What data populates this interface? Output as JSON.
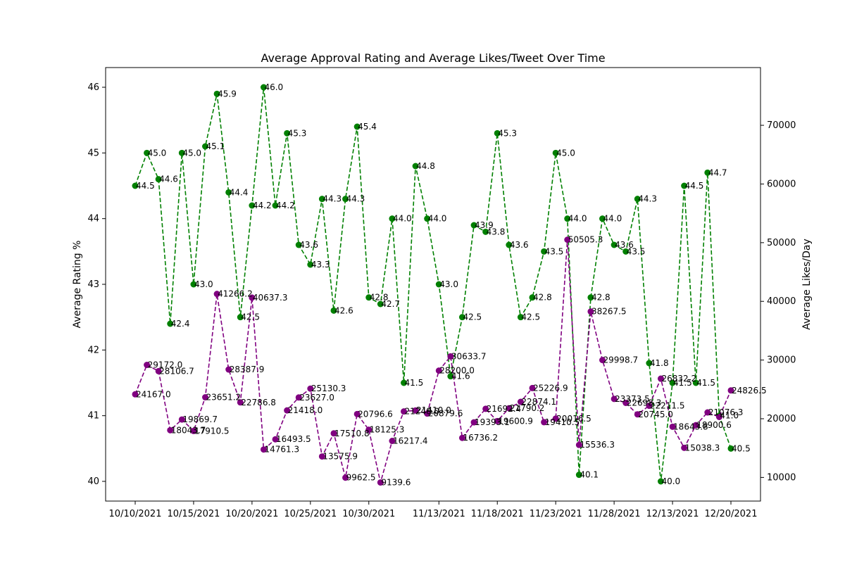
{
  "chart_data": {
    "type": "line",
    "title": "Average Approval Rating and Average Likes/Tweet Over Time",
    "ylabel": "Average Rating %",
    "y2label": "Average Likes/Day",
    "ylim": [
      39.7,
      46.3
    ],
    "y2lim": [
      5970,
      79840
    ],
    "yticks": [
      40,
      41,
      42,
      43,
      44,
      45,
      46
    ],
    "y2ticks": [
      10000,
      20000,
      30000,
      40000,
      50000,
      60000,
      70000
    ],
    "xticks": [
      "10/10/2021",
      "10/15/2021",
      "10/20/2021",
      "10/25/2021",
      "10/30/2021",
      "11/13/2021",
      "11/18/2021",
      "11/23/2021",
      "11/28/2021",
      "12/13/2021",
      "12/20/2021"
    ],
    "xtick_index": [
      0,
      5,
      10,
      15,
      20,
      26,
      31,
      36,
      41,
      46,
      51
    ],
    "grid": false,
    "colors": {
      "approval": "#008000",
      "likes": "#800080"
    },
    "series": [
      {
        "axis": "left",
        "color": "#008000",
        "values": [
          44.5,
          45.0,
          44.6,
          42.4,
          45.0,
          43.0,
          45.1,
          45.9,
          44.4,
          42.5,
          44.2,
          46.0,
          44.2,
          45.3,
          43.6,
          43.3,
          44.3,
          42.6,
          44.3,
          45.4,
          42.8,
          42.7,
          44.0,
          41.5,
          44.8,
          44.0,
          43.0,
          41.6,
          42.5,
          43.9,
          43.8,
          45.3,
          43.6,
          42.5,
          42.8,
          43.5,
          45.0,
          44.0,
          40.1,
          42.8,
          44.0,
          43.6,
          43.5,
          44.3,
          41.8,
          40.0,
          41.5,
          44.5,
          41.5,
          44.7,
          41.0,
          40.5
        ],
        "labels": [
          "44.5",
          "45.0",
          "44.6",
          "42.4",
          "45.0",
          "43.0",
          "45.1",
          "45.9",
          "44.4",
          "42.5",
          "44.2",
          "46.0",
          "44.2",
          "45.3",
          "43.6",
          "43.3",
          "44.3",
          "42.6",
          "44.3",
          "45.4",
          "42.8",
          "42.7",
          "44.0",
          "41.5",
          "44.8",
          "44.0",
          "43.0",
          "41.6",
          "42.5",
          "43.9",
          "43.8",
          "45.3",
          "43.6",
          "42.5",
          "42.8",
          "43.5",
          "45.0",
          "44.0",
          "40.1",
          "42.8",
          "44.0",
          "43.6",
          "43.5",
          "44.3",
          "41.8",
          "40.0",
          "41.5",
          "44.5",
          "41.5",
          "44.7",
          "41.0",
          "40.5"
        ]
      },
      {
        "axis": "right",
        "color": "#800080",
        "values": [
          24167.0,
          29172.0,
          28106.7,
          18043.7,
          19869.7,
          17910.5,
          23651.2,
          41266.2,
          28387.9,
          22786.8,
          40637.3,
          14761.3,
          16493.5,
          21418.0,
          23627.0,
          25130.3,
          13575.9,
          17510.8,
          9962.5,
          20796.6,
          18125.3,
          9139.6,
          16217.4,
          21240.0,
          21410.0,
          20879.6,
          28200.0,
          30633.7,
          16736.2,
          19393.1,
          21692.4,
          19600.9,
          21790.2,
          22874.1,
          25226.9,
          19410.5,
          20016.5,
          50505.3,
          15536.3,
          38267.5,
          29998.7,
          23373.5,
          22698.3,
          20745.0,
          22211.5,
          26832.2,
          18643.8,
          15038.3,
          18900.6,
          21076.3,
          20300.0,
          24826.5
        ],
        "labels": [
          "24167.0",
          "29172.0",
          "28106.7",
          "18043.7",
          "19869.7",
          "17910.5",
          "23651.2",
          "41266.2",
          "28387.9",
          "22786.8",
          "40637.3",
          "14761.3",
          "16493.5",
          "21418.0",
          "23627.0",
          "25130.3",
          "13575.9",
          "17510.8",
          "9962.5",
          "20796.6",
          "18125.3",
          "9139.6",
          "16217.4",
          "21240.0",
          "21410.0",
          "20879.6",
          "28200.0",
          "30633.7",
          "16736.2",
          "19393.1",
          "21692.4",
          "19600.9",
          "21790.2",
          "22874.1",
          "25226.9",
          "19410.5",
          "20016.5",
          "50505.3",
          "15536.3",
          "38267.5",
          "29998.7",
          "23373.5",
          "22698.3",
          "20745.0",
          "22211.5",
          "26832.2",
          "18643.8",
          "15038.3",
          "18900.6",
          "21076.3",
          "",
          "24826.5"
        ]
      }
    ]
  }
}
